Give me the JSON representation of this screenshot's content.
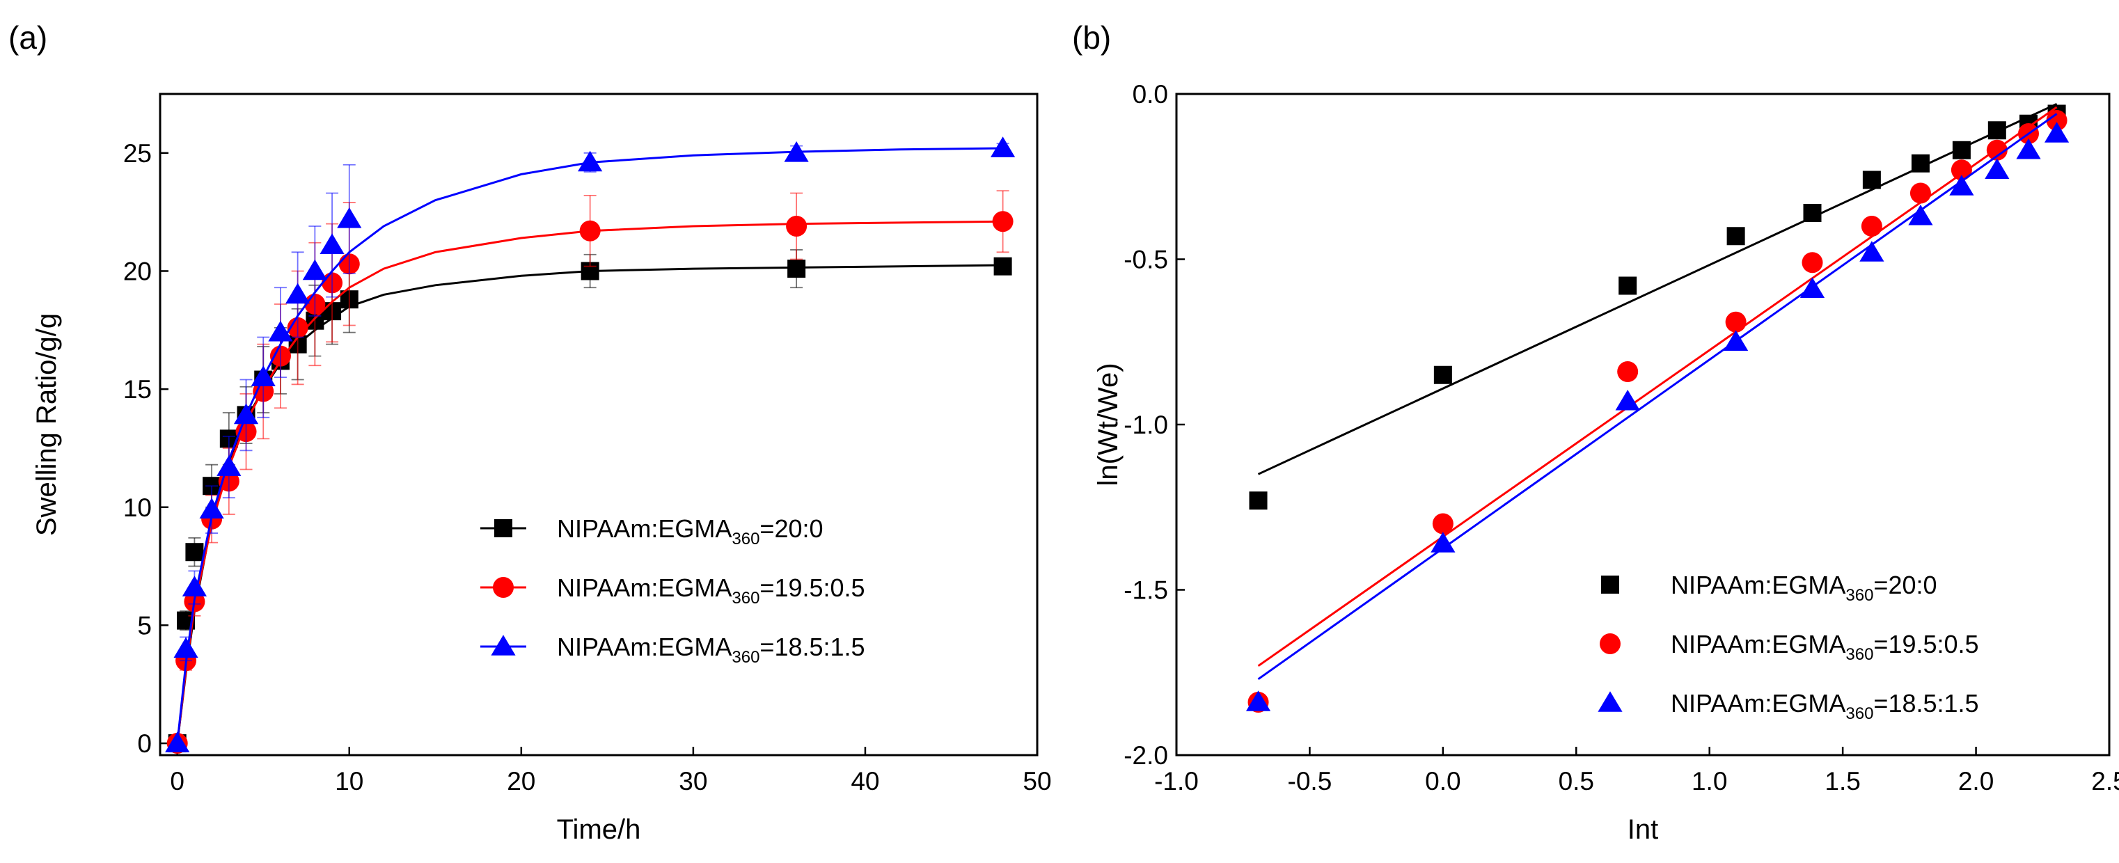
{
  "chart_data": [
    {
      "panel_label": "(a)",
      "type": "scatter",
      "xlabel": "Time/h",
      "ylabel": "Swelling Ratio/g/g",
      "xlim": [
        -1,
        50
      ],
      "ylim": [
        -0.5,
        27.5
      ],
      "xticks": [
        0,
        10,
        20,
        30,
        40,
        50
      ],
      "yticks": [
        0,
        5,
        10,
        15,
        20,
        25
      ],
      "legend_position": "bottom-right",
      "legend_style": "line-with-marker",
      "series": [
        {
          "label": "NIPAAm:EGMA",
          "subscript": "360",
          "suffix": "=20:0",
          "color": "#000000",
          "marker": "square",
          "x": [
            0,
            0.5,
            1,
            2,
            3,
            4,
            5,
            6,
            7,
            8,
            9,
            10,
            24,
            36,
            48
          ],
          "y": [
            0,
            5.2,
            8.1,
            10.9,
            12.9,
            13.9,
            15.4,
            16.2,
            16.9,
            17.9,
            18.3,
            18.8,
            20.0,
            20.1,
            20.2
          ],
          "err": [
            0,
            0.4,
            0.6,
            0.9,
            1.1,
            1.2,
            1.4,
            1.4,
            1.5,
            1.5,
            1.4,
            1.4,
            0.7,
            0.8,
            0.3
          ],
          "fit": [
            [
              0,
              0
            ],
            [
              0.5,
              3.0
            ],
            [
              1,
              5.6
            ],
            [
              2,
              9.4
            ],
            [
              3,
              11.9
            ],
            [
              4,
              13.7
            ],
            [
              5,
              15.0
            ],
            [
              6,
              16.1
            ],
            [
              7,
              16.9
            ],
            [
              8,
              17.5
            ],
            [
              9,
              18.0
            ],
            [
              10,
              18.5
            ],
            [
              12,
              19.0
            ],
            [
              15,
              19.4
            ],
            [
              20,
              19.8
            ],
            [
              24,
              20.0
            ],
            [
              30,
              20.1
            ],
            [
              36,
              20.15
            ],
            [
              42,
              20.2
            ],
            [
              48,
              20.25
            ]
          ]
        },
        {
          "label": "NIPAAm:EGMA",
          "subscript": "360",
          "suffix": "=19.5:0.5",
          "color": "#ff0000",
          "marker": "circle",
          "x": [
            0,
            0.5,
            1,
            2,
            3,
            4,
            5,
            6,
            7,
            8,
            9,
            10,
            24,
            36,
            48
          ],
          "y": [
            0,
            3.5,
            6.0,
            9.5,
            11.1,
            13.2,
            14.9,
            16.4,
            17.6,
            18.6,
            19.5,
            20.3,
            21.7,
            21.9,
            22.1
          ],
          "err": [
            0,
            0.4,
            0.6,
            1.0,
            1.4,
            1.6,
            2.0,
            2.2,
            2.4,
            2.6,
            2.5,
            2.6,
            1.5,
            1.4,
            1.3
          ],
          "fit": [
            [
              0,
              0
            ],
            [
              0.5,
              3.1
            ],
            [
              1,
              5.8
            ],
            [
              2,
              9.3
            ],
            [
              3,
              11.7
            ],
            [
              4,
              13.6
            ],
            [
              5,
              15.0
            ],
            [
              6,
              16.2
            ],
            [
              7,
              17.2
            ],
            [
              8,
              18.0
            ],
            [
              9,
              18.7
            ],
            [
              10,
              19.3
            ],
            [
              12,
              20.1
            ],
            [
              15,
              20.8
            ],
            [
              20,
              21.4
            ],
            [
              24,
              21.7
            ],
            [
              30,
              21.9
            ],
            [
              36,
              22.0
            ],
            [
              42,
              22.05
            ],
            [
              48,
              22.1
            ]
          ]
        },
        {
          "label": "NIPAAm:EGMA",
          "subscript": "360",
          "suffix": "=18.5:1.5",
          "color": "#0000ff",
          "marker": "triangle",
          "x": [
            0,
            0.5,
            1,
            2,
            3,
            4,
            5,
            6,
            7,
            8,
            9,
            10,
            24,
            36,
            48
          ],
          "y": [
            0,
            4.0,
            6.6,
            9.9,
            11.7,
            13.9,
            15.5,
            17.4,
            19.0,
            20.0,
            21.1,
            22.2,
            24.6,
            25.0,
            25.2
          ],
          "err": [
            0,
            0.5,
            0.7,
            1.0,
            1.3,
            1.5,
            1.7,
            1.9,
            1.8,
            1.9,
            2.2,
            2.3,
            0.4,
            0.3,
            0.2
          ],
          "fit": [
            [
              0,
              0
            ],
            [
              0.5,
              3.4
            ],
            [
              1,
              6.1
            ],
            [
              2,
              9.6
            ],
            [
              3,
              12.0
            ],
            [
              4,
              13.9
            ],
            [
              5,
              15.5
            ],
            [
              6,
              16.9
            ],
            [
              7,
              18.1
            ],
            [
              8,
              19.1
            ],
            [
              9,
              20.0
            ],
            [
              10,
              20.8
            ],
            [
              12,
              21.9
            ],
            [
              15,
              23.0
            ],
            [
              20,
              24.1
            ],
            [
              24,
              24.6
            ],
            [
              30,
              24.9
            ],
            [
              36,
              25.05
            ],
            [
              42,
              25.15
            ],
            [
              48,
              25.2
            ]
          ]
        }
      ]
    },
    {
      "panel_label": "(b)",
      "type": "scatter",
      "xlabel": "Int",
      "ylabel": "ln(Wt/We)",
      "xlim": [
        -1.0,
        2.5
      ],
      "ylim": [
        -2.0,
        0.0
      ],
      "xticks": [
        "-1.0",
        "-0.5",
        "0.0",
        "0.5",
        "1.0",
        "1.5",
        "2.0",
        "2.5"
      ],
      "yticks": [
        "-2.0",
        "-1.5",
        "-1.0",
        "-0.5",
        "0.0"
      ],
      "legend_position": "bottom-right",
      "legend_style": "marker-only",
      "series": [
        {
          "label": "NIPAAm:EGMA",
          "subscript": "360",
          "suffix": "=20:0",
          "color": "#000000",
          "marker": "square",
          "x": [
            -0.693,
            0.0,
            0.693,
            1.099,
            1.386,
            1.609,
            1.792,
            1.946,
            2.079,
            2.197,
            2.303
          ],
          "y": [
            -1.23,
            -0.85,
            -0.58,
            -0.43,
            -0.36,
            -0.26,
            -0.21,
            -0.17,
            -0.11,
            -0.09,
            -0.06
          ],
          "fit": [
            [
              -0.693,
              -1.15
            ],
            [
              2.303,
              -0.03
            ]
          ]
        },
        {
          "label": "NIPAAm:EGMA",
          "subscript": "360",
          "suffix": "=19.5:0.5",
          "color": "#ff0000",
          "marker": "circle",
          "x": [
            -0.693,
            0.0,
            0.693,
            1.099,
            1.386,
            1.609,
            1.792,
            1.946,
            2.079,
            2.197,
            2.303
          ],
          "y": [
            -1.84,
            -1.3,
            -0.84,
            -0.69,
            -0.51,
            -0.4,
            -0.3,
            -0.23,
            -0.17,
            -0.12,
            -0.08
          ],
          "fit": [
            [
              -0.693,
              -1.73
            ],
            [
              2.303,
              -0.04
            ]
          ]
        },
        {
          "label": "NIPAAm:EGMA",
          "subscript": "360",
          "suffix": "=18.5:1.5",
          "color": "#0000ff",
          "marker": "triangle",
          "x": [
            -0.693,
            0.0,
            0.693,
            1.099,
            1.386,
            1.609,
            1.792,
            1.946,
            2.079,
            2.197,
            2.303
          ],
          "y": [
            -1.84,
            -1.36,
            -0.93,
            -0.75,
            -0.59,
            -0.48,
            -0.37,
            -0.28,
            -0.23,
            -0.17,
            -0.12
          ],
          "fit": [
            [
              -0.693,
              -1.77
            ],
            [
              2.303,
              -0.06
            ]
          ]
        }
      ]
    }
  ]
}
